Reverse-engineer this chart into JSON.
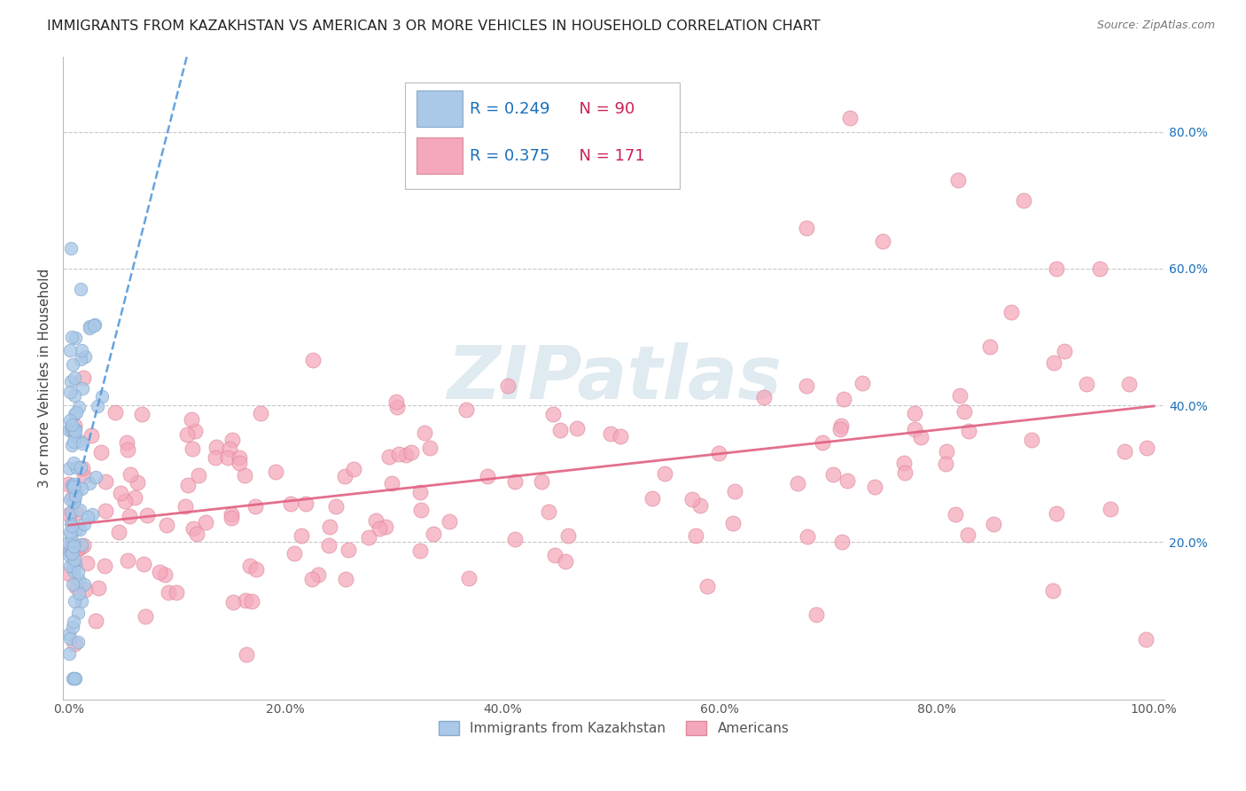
{
  "title": "IMMIGRANTS FROM KAZAKHSTAN VS AMERICAN 3 OR MORE VEHICLES IN HOUSEHOLD CORRELATION CHART",
  "source": "Source: ZipAtlas.com",
  "ylabel": "3 or more Vehicles in Household",
  "legend_R_color": "#1a6fba",
  "legend_N_color": "#cc2255",
  "blue_R": 0.249,
  "blue_N": 90,
  "pink_R": 0.375,
  "pink_N": 171,
  "blue_line_color": "#5599dd",
  "pink_line_color": "#e06080",
  "scatter_blue_color": "#aac8e8",
  "scatter_blue_edge": "#88aacc",
  "scatter_pink_color": "#f5a8bc",
  "scatter_pink_edge": "#dd8899",
  "watermark_color": "#ccdde8",
  "background_color": "#ffffff",
  "grid_color": "#bbbbbb",
  "title_color": "#222222",
  "axis_label_color": "#444444",
  "right_tick_color": "#1a6fba",
  "bottom_tick_color": "#555555"
}
